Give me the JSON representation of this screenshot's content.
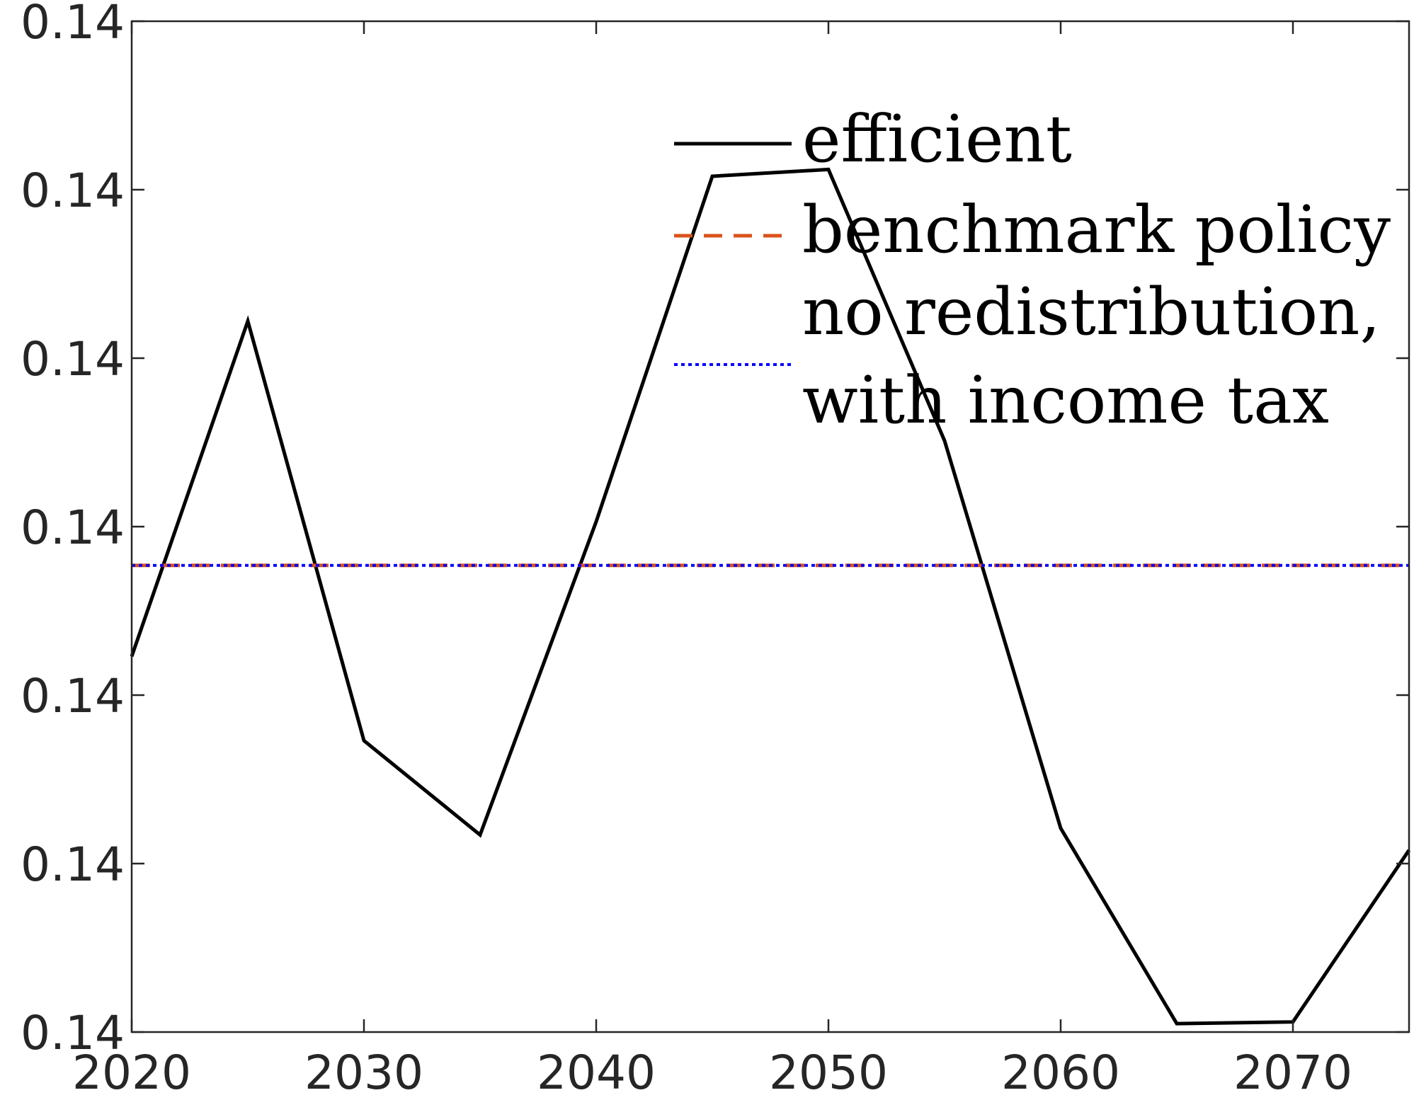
{
  "chart_data": {
    "type": "line",
    "title": "",
    "xlabel": "",
    "ylabel": "",
    "xlim": [
      2020,
      2075
    ],
    "ylim": [
      0.137,
      0.143
    ],
    "grid": false,
    "legend_position": "top-right",
    "x_ticks": [
      "2020",
      "2030",
      "2040",
      "2050",
      "2060",
      "2070"
    ],
    "y_ticks": [
      "0.14",
      "0.14",
      "0.14",
      "0.14",
      "0.14",
      "0.14",
      "0.14"
    ],
    "series": [
      {
        "name": "efficient",
        "color": "#000000",
        "style": "solid",
        "x": [
          2020,
          2025,
          2030,
          2035,
          2040,
          2045,
          2050,
          2055,
          2060,
          2065,
          2070,
          2075
        ],
        "y": [
          0.13923,
          0.14122,
          0.13873,
          0.13817,
          0.14003,
          0.14208,
          0.14212,
          0.14051,
          0.13821,
          0.13705,
          0.13706,
          0.13808
        ]
      },
      {
        "name": "benchmark policy",
        "color": "#D95319",
        "style": "dashed",
        "x": [
          2020,
          2075
        ],
        "y": [
          0.13977,
          0.13977
        ]
      },
      {
        "name": "no redistribution, with income tax",
        "legend_lines": [
          "no redistribution,",
          "with income tax"
        ],
        "color": "#0000FF",
        "style": "dotted",
        "x": [
          2020,
          2075
        ],
        "y": [
          0.13977,
          0.13977
        ]
      }
    ]
  }
}
